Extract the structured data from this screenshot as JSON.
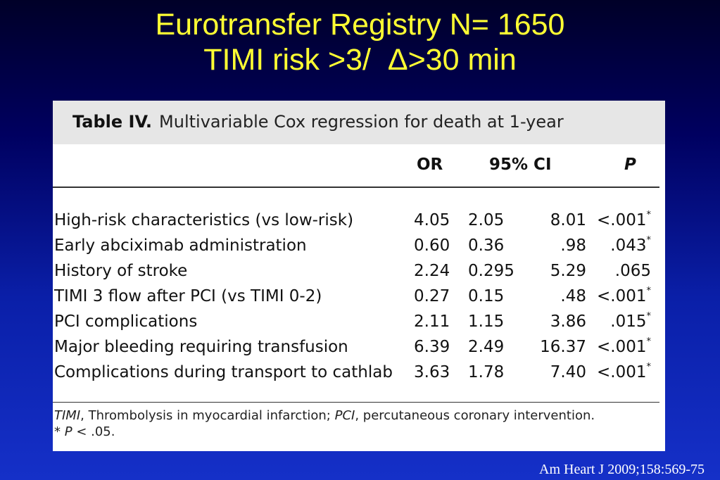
{
  "slide": {
    "title_line1": "Eurotransfer Registry N= 1650",
    "title_line2": "TIMI risk >3/  Δ>30 min",
    "citation": "Am Heart J 2009;158:569-75",
    "colors": {
      "background": "#000060",
      "title": "#ffff33",
      "citation": "#ffffff"
    }
  },
  "table": {
    "caption_label": "Table IV.",
    "caption_text": "Multivariable Cox regression for death at 1-year",
    "headers": {
      "or": "OR",
      "ci": "95% CI",
      "p": "P"
    },
    "rows": [
      {
        "label": "High-risk characteristics (vs low-risk)",
        "or": "4.05",
        "ci_low": "2.05",
        "ci_high": "8.01",
        "p": "<.001",
        "mark": "*"
      },
      {
        "label": "Early abciximab administration",
        "or": "0.60",
        "ci_low": "0.36",
        "ci_high": ".98",
        "p": ".043",
        "mark": "*"
      },
      {
        "label": "History of stroke",
        "or": "2.24",
        "ci_low": "0.295",
        "ci_high": "5.29",
        "p": ".065",
        "mark": ""
      },
      {
        "label": "TIMI 3 flow after PCI (vs TIMI 0-2)",
        "or": "0.27",
        "ci_low": "0.15",
        "ci_high": ".48",
        "p": "<.001",
        "mark": "*"
      },
      {
        "label": "PCI complications",
        "or": "2.11",
        "ci_low": "1.15",
        "ci_high": "3.86",
        "p": ".015",
        "mark": "*"
      },
      {
        "label": "Major bleeding requiring transfusion",
        "or": "6.39",
        "ci_low": "2.49",
        "ci_high": "16.37",
        "p": "<.001",
        "mark": "*"
      },
      {
        "label": "Complications during transport to cathlab",
        "or": "3.63",
        "ci_low": "1.78",
        "ci_high": "7.40",
        "p": "<.001",
        "mark": "*"
      }
    ],
    "footnote": {
      "abbr1": "TIMI",
      "def1": ", Thrombolysis in myocardial infarction; ",
      "abbr2": "PCI",
      "def2": ", percutaneous coronary intervention.",
      "sig_mark": "*",
      "sig_p": "P",
      "sig_rest": " < .05."
    }
  }
}
